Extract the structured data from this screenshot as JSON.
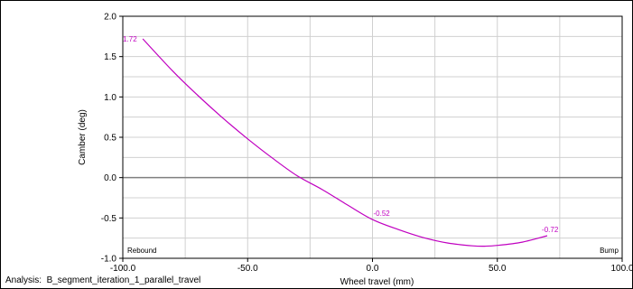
{
  "analysis": {
    "label": "Analysis:",
    "name": "B_segment_iteration_1_parallel_travel"
  },
  "chart_data": {
    "type": "line",
    "title": "",
    "xlabel": "Wheel travel (mm)",
    "ylabel": "Camber (deg)",
    "xlim": [
      -100,
      100
    ],
    "ylim": [
      -1.0,
      2.0
    ],
    "x_ticks": [
      -100,
      -50,
      0,
      50,
      100
    ],
    "x_tick_labels": [
      "-100.0",
      "-50.0",
      "0.0",
      "50.0",
      "100.0"
    ],
    "y_ticks": [
      -1.0,
      -0.5,
      0.0,
      0.5,
      1.0,
      1.5,
      2.0
    ],
    "y_tick_labels": [
      "-1.0",
      "-0.5",
      "0.0",
      "0.5",
      "1.0",
      "1.5",
      "2.0"
    ],
    "grid": true,
    "corner_labels": {
      "left": "Rebound",
      "right": "Bump"
    },
    "series": [
      {
        "color": "#c000c0",
        "x": [
          -92,
          -80,
          -70,
          -60,
          -50,
          -40,
          -30,
          -20,
          -10,
          0,
          10,
          20,
          30,
          40,
          45,
          50,
          60,
          70
        ],
        "y": [
          1.72,
          1.32,
          1.02,
          0.74,
          0.48,
          0.24,
          0.02,
          -0.15,
          -0.34,
          -0.52,
          -0.64,
          -0.74,
          -0.81,
          -0.845,
          -0.85,
          -0.84,
          -0.8,
          -0.72
        ]
      }
    ],
    "data_labels": [
      {
        "x": -92,
        "y": 1.72,
        "text": "1.72"
      },
      {
        "x": 0,
        "y": -0.52,
        "text": "-0.52"
      },
      {
        "x": 70,
        "y": -0.72,
        "text": "-0.72"
      }
    ],
    "colors": {
      "line": "#c000c0",
      "zero_line": "#808080",
      "grid": "#d0d0d0"
    }
  }
}
